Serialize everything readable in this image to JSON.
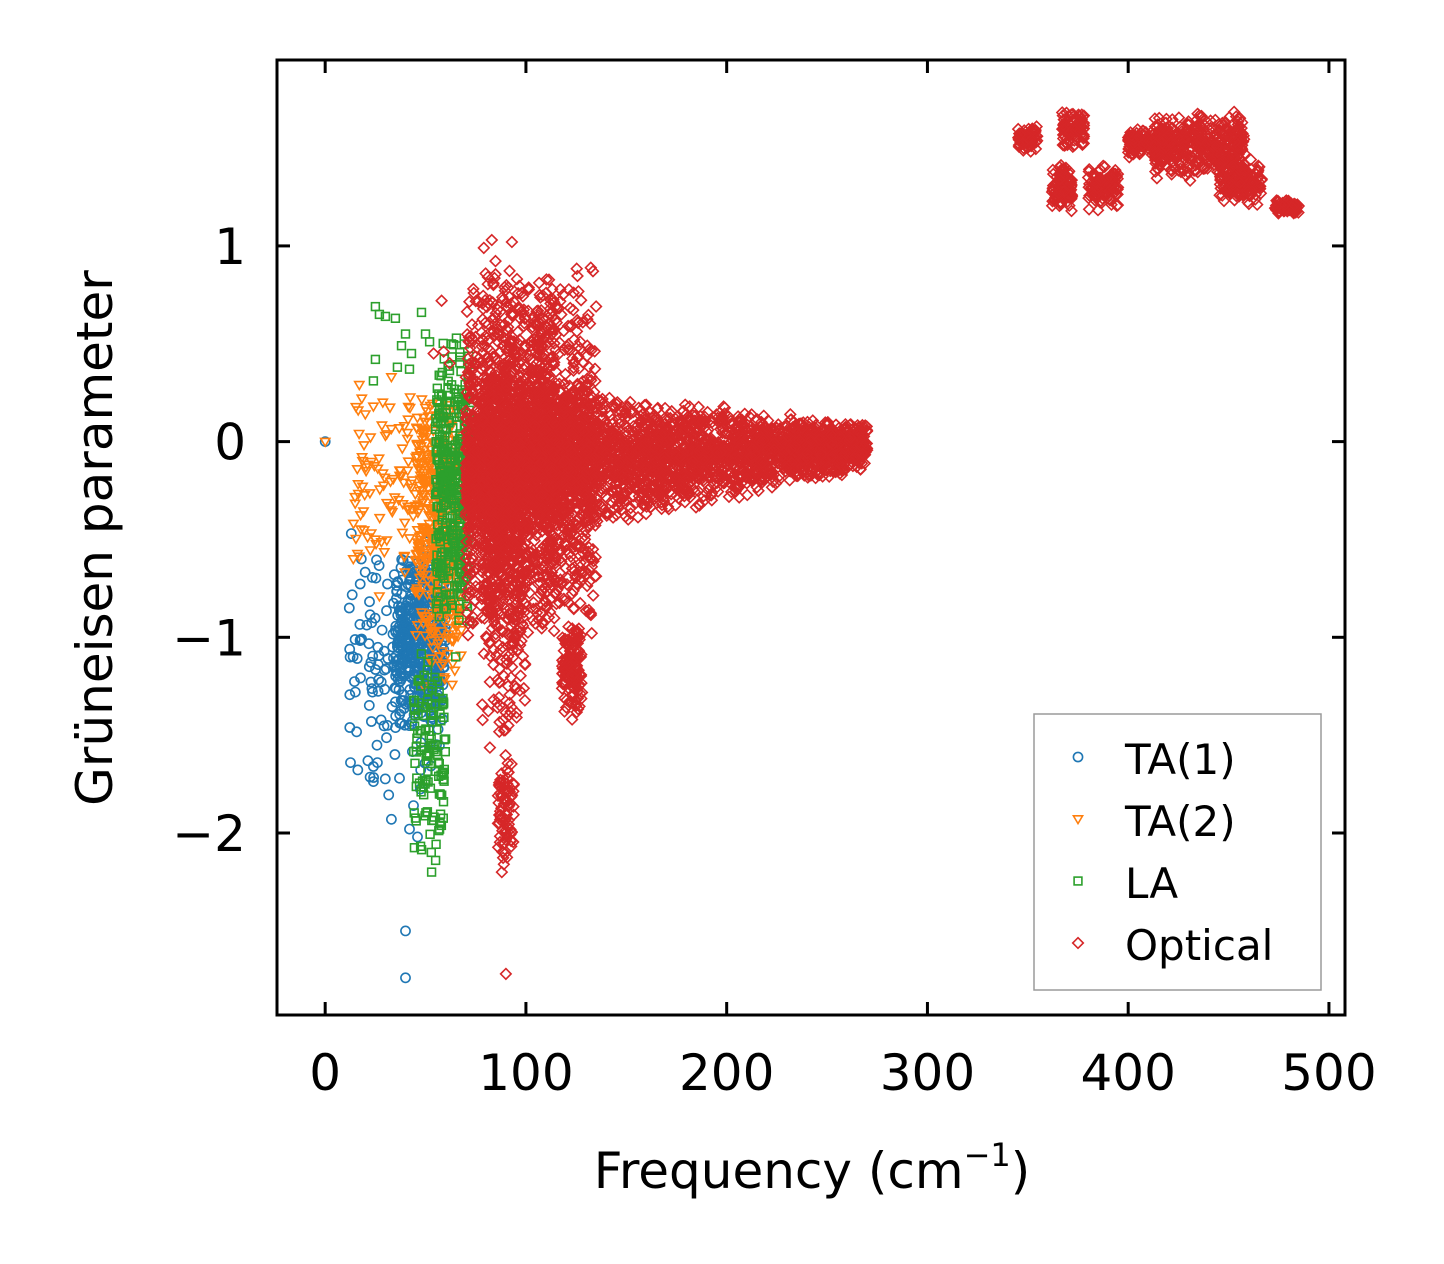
{
  "chart_data": {
    "type": "scatter",
    "title": "",
    "xlabel": "Frequency (cm",
    "xlabel_sup": "−1",
    "xlabel_close": ")",
    "ylabel": "Grüneisen parameter",
    "xlim": [
      -24,
      508
    ],
    "ylim": [
      -2.93,
      1.95
    ],
    "x_ticks": [
      0,
      100,
      200,
      300,
      400,
      500
    ],
    "x_tick_labels": [
      "0",
      "100",
      "200",
      "300",
      "400",
      "500"
    ],
    "y_ticks": [
      1,
      0,
      -1,
      -2
    ],
    "y_tick_labels": [
      "1",
      "0",
      "−1",
      "−2"
    ],
    "legend_position": "lower-right",
    "grid": false,
    "series": [
      {
        "name": "TA(1)",
        "label": "TA(1)",
        "marker": "circle",
        "color": "#1f77b4",
        "regions": [
          {
            "f": [
              12,
              58
            ],
            "g_lo": -1.9,
            "g_hi": -0.35,
            "n": 140
          },
          {
            "f": [
              35,
              60
            ],
            "g_lo": -1.5,
            "g_hi": -0.5,
            "n": 420
          }
        ],
        "points": [
          [
            0,
            0
          ],
          [
            40,
            -2.5
          ],
          [
            40,
            -2.74
          ],
          [
            18,
            -0.6
          ],
          [
            13,
            -0.47
          ],
          [
            12,
            -0.85
          ],
          [
            15,
            -1.28
          ],
          [
            23,
            -1.43
          ],
          [
            24,
            -1.66
          ],
          [
            26,
            -1.64
          ],
          [
            33,
            -1.93
          ],
          [
            37,
            -1.72
          ],
          [
            44,
            -1.86
          ],
          [
            46,
            -2.02
          ],
          [
            42,
            -1.98
          ],
          [
            22,
            -1.15
          ],
          [
            31,
            -1.45
          ],
          [
            35,
            -1.33
          ]
        ]
      },
      {
        "name": "TA(2)",
        "label": "TA(2)",
        "marker": "triangle-down",
        "color": "#ff7f0e",
        "regions": [
          {
            "f": [
              14,
              64
            ],
            "g_lo": -0.7,
            "g_hi": 0.3,
            "n": 150
          },
          {
            "f": [
              45,
              68
            ],
            "g_lo": -1.3,
            "g_hi": 0.25,
            "n": 380
          }
        ],
        "points": [
          [
            0,
            0
          ],
          [
            17,
            0.29
          ],
          [
            20,
            0.14
          ],
          [
            16,
            -0.14
          ],
          [
            14,
            -0.6
          ],
          [
            25,
            -0.5
          ],
          [
            27,
            -0.79
          ],
          [
            30,
            0.03
          ],
          [
            33,
            0.33
          ],
          [
            24,
            0.18
          ]
        ]
      },
      {
        "name": "LA",
        "label": "LA",
        "marker": "square",
        "color": "#2ca02c",
        "regions": [
          {
            "f": [
              55,
              72
            ],
            "g_lo": -1.0,
            "g_hi": 0.6,
            "n": 380
          },
          {
            "f": [
              44,
              60
            ],
            "g_lo": -2.2,
            "g_hi": -1.0,
            "n": 120
          }
        ],
        "points": [
          [
            25,
            0.69
          ],
          [
            27,
            0.65
          ],
          [
            30,
            0.64
          ],
          [
            35,
            0.63
          ],
          [
            48,
            0.66
          ],
          [
            50,
            0.55
          ],
          [
            40,
            0.55
          ],
          [
            25,
            0.42
          ],
          [
            24,
            0.31
          ],
          [
            38,
            0.49
          ],
          [
            42,
            0.37
          ],
          [
            52,
            0.51
          ],
          [
            43,
            0.45
          ],
          [
            36,
            0.38
          ],
          [
            53,
            -2.2
          ],
          [
            55,
            -2.14
          ],
          [
            57,
            -1.98
          ],
          [
            59,
            -1.34
          ],
          [
            65,
            -1.1
          ],
          [
            63,
            0.29
          ]
        ]
      },
      {
        "name": "Optical",
        "label": "Optical",
        "marker": "diamond",
        "color": "#d62728",
        "regions": [
          {
            "f": [
              70,
              270
            ],
            "g_lo": -0.6,
            "g_hi": 0.35,
            "n": 3000,
            "taper": true
          },
          {
            "f": [
              70,
              135
            ],
            "g_lo": -1.1,
            "g_hi": 0.9,
            "n": 1600
          },
          {
            "f": [
              78,
              100
            ],
            "g_lo": -1.6,
            "g_hi": 1.0,
            "n": 600
          },
          {
            "f": [
              86,
              94
            ],
            "g_lo": -2.2,
            "g_hi": -1.5,
            "n": 80
          },
          {
            "f": [
              104,
              115
            ],
            "g_lo": -0.9,
            "g_hi": 0.9,
            "n": 300
          },
          {
            "f": [
              118,
              128
            ],
            "g_lo": -1.4,
            "g_hi": -0.9,
            "n": 140
          },
          {
            "f": [
              345,
              355
            ],
            "g_lo": 1.48,
            "g_hi": 1.62,
            "n": 80
          },
          {
            "f": [
              362,
              372
            ],
            "g_lo": 1.17,
            "g_hi": 1.43,
            "n": 120
          },
          {
            "f": [
              367,
              378
            ],
            "g_lo": 1.5,
            "g_hi": 1.7,
            "n": 100
          },
          {
            "f": [
              380,
              395
            ],
            "g_lo": 1.18,
            "g_hi": 1.42,
            "n": 120
          },
          {
            "f": [
              400,
              420
            ],
            "g_lo": 1.45,
            "g_hi": 1.6,
            "n": 140
          },
          {
            "f": [
              413,
              433
            ],
            "g_lo": 1.33,
            "g_hi": 1.67,
            "n": 180
          },
          {
            "f": [
              433,
              458
            ],
            "g_lo": 1.35,
            "g_hi": 1.7,
            "n": 220
          },
          {
            "f": [
              445,
              467
            ],
            "g_lo": 1.2,
            "g_hi": 1.45,
            "n": 160
          },
          {
            "f": [
              473,
              485
            ],
            "g_lo": 1.16,
            "g_hi": 1.24,
            "n": 70
          }
        ],
        "points": [
          [
            58,
            0.72
          ],
          [
            59,
            0.46
          ],
          [
            54,
            0.45
          ],
          [
            90,
            -2.72
          ],
          [
            88,
            -2.2
          ],
          [
            89,
            -2.16
          ],
          [
            123,
            -1.42
          ],
          [
            62,
            0.4
          ],
          [
            125,
            -1.35
          ],
          [
            93,
            1.02
          ],
          [
            83,
            1.03
          ],
          [
            79,
            0.99
          ]
        ]
      }
    ]
  }
}
